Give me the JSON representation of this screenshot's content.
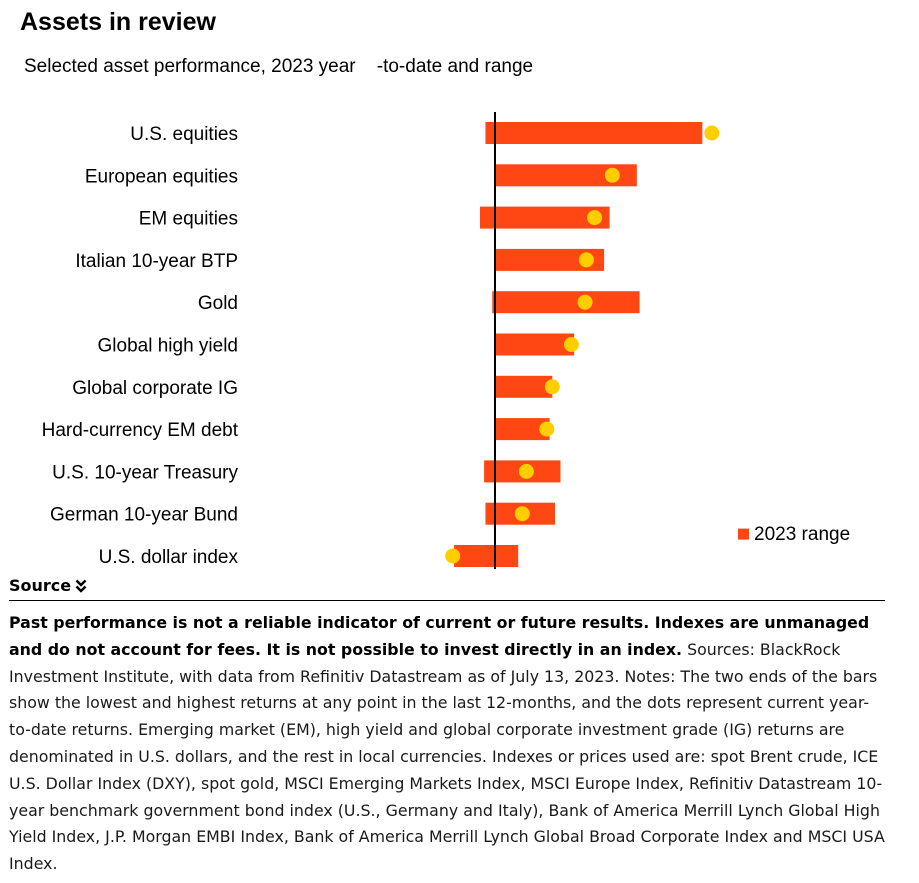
{
  "title": "Assets in review",
  "subtitle": "Selected asset performance, 2023 year    -to-date and range",
  "chart_data": {
    "type": "bar",
    "subtype": "range-with-dot",
    "categories": [
      "U.S. equities",
      "European equities",
      "EM equities",
      "Italian 10-year BTP",
      "Gold",
      "Global high yield",
      "Global corporate IG",
      "Hard-currency EM debt",
      "U.S. 10-year Treasury",
      "German 10-year Bund",
      "U.S. dollar index"
    ],
    "ranges": [
      [
        -3.5,
        76
      ],
      [
        0,
        52
      ],
      [
        -5.5,
        42
      ],
      [
        0,
        40
      ],
      [
        -1,
        53
      ],
      [
        0,
        29
      ],
      [
        0,
        21
      ],
      [
        0,
        20
      ],
      [
        -4,
        24
      ],
      [
        -3.5,
        22
      ],
      [
        -15,
        8.5
      ]
    ],
    "values": [
      79.5,
      43,
      36.5,
      33.5,
      33,
      28,
      21,
      19,
      11.5,
      10,
      -15.5
    ],
    "series": [
      {
        "name": "2023 range"
      }
    ],
    "xlim": [
      -17,
      80
    ],
    "grid": false,
    "legend_position": "bottom-right",
    "colors": {
      "bar": "#ff4713",
      "dot": "#ffce00",
      "zero_line": "#000000"
    }
  },
  "source": {
    "toggle_label": "Source",
    "chevron_icon": "double-chevron-down-icon",
    "bold_text": "Past performance is not a reliable indicator of current or future results. Indexes are unmanaged and do not account for fees. It is not possible to invest directly in an index.",
    "body_text": " Sources: BlackRock Investment Institute, with data from Refinitiv Datastream as of July 13, 2023. Notes: The two ends of the bars show the lowest and highest returns at any point in the last 12-months, and the dots represent current year-to-date returns. Emerging market (EM), high yield and global corporate investment grade (IG) returns are denominated in U.S. dollars, and the rest in local currencies. Indexes or prices used are: spot Brent crude, ICE U.S. Dollar Index (DXY), spot gold, MSCI Emerging Markets Index, MSCI Europe Index, Refinitiv Datastream 10-year benchmark government bond index (U.S., Germany and Italy), Bank of America Merrill Lynch Global High Yield Index, J.P. Morgan EMBI Index, Bank of America Merrill Lynch Global Broad Corporate Index and MSCI USA Index."
  }
}
